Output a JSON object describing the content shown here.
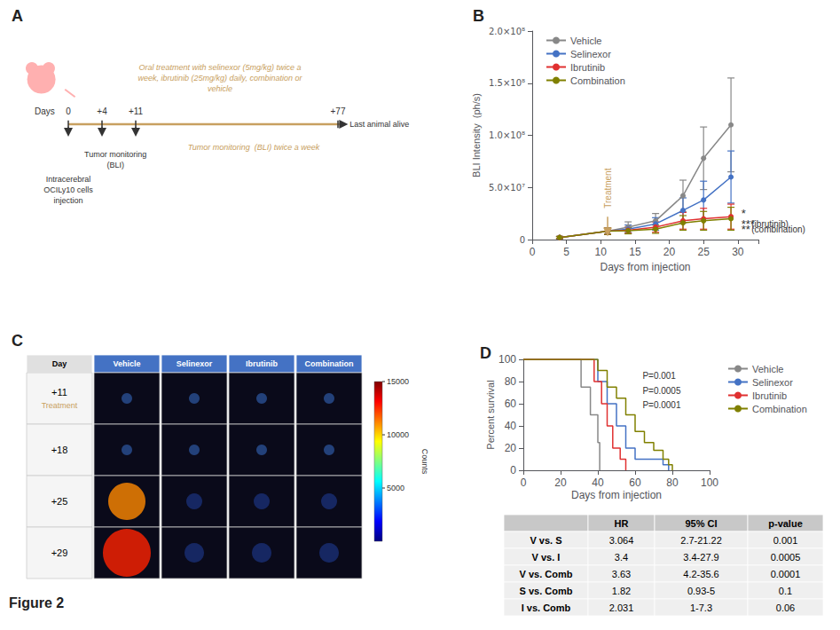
{
  "chart_data": [
    {
      "type": "timeline",
      "title": "A",
      "color": "#C8A060",
      "xlabel": "Days",
      "categories": [
        "0",
        "+4",
        "+11",
        "+77"
      ],
      "annotations": [
        {
          "text": "Intracerebral\nOCILy10 cells\ninjection"
        },
        {
          "text": "Tumor monitoring\n(BLI)"
        },
        {
          "text": "Last animal alive"
        },
        {
          "text": "Oral treatment with selinexor (5mg/kg) twice a\nweek, ibrutinib (25mg/kg) daily, combination or\nvehicle"
        },
        {
          "text": "Tumor monitoring  (BLI) twice a week"
        }
      ]
    },
    {
      "type": "line",
      "title": "B",
      "xlabel": "Days from injection",
      "ylabel": "BLI Intensity  (ph/s)",
      "x": [
        4,
        11,
        14,
        18,
        22,
        25,
        29
      ],
      "xlim": [
        0,
        33
      ],
      "xticks": [
        0,
        5,
        10,
        15,
        20,
        25,
        30
      ],
      "ylim": [
        0,
        200000000
      ],
      "yticks": [
        0,
        {
          "value": 50000000,
          "label": "5.0×10⁷"
        },
        {
          "value": 100000000,
          "label": "1.0×10⁸"
        },
        {
          "value": 150000000,
          "label": "1.5×10⁸"
        },
        {
          "value": 200000000,
          "label": "2.0×10⁸"
        }
      ],
      "grid": false,
      "legend": "upper left",
      "marker": "circle",
      "series": [
        {
          "name": "Vehicle",
          "color": "#888888",
          "values": [
            2000000,
            8000000,
            12000000,
            18000000,
            42000000,
            78000000,
            110000000
          ],
          "errors": [
            1000000,
            3000000,
            5000000,
            7000000,
            15000000,
            30000000,
            45000000
          ]
        },
        {
          "name": "Selinexor",
          "color": "#4472C4",
          "values": [
            2000000,
            8000000,
            10000000,
            15000000,
            28000000,
            38000000,
            60000000
          ],
          "errors": [
            1000000,
            3000000,
            4000000,
            6000000,
            12000000,
            18000000,
            25000000
          ]
        },
        {
          "name": "Ibrutinib",
          "color": "#E03030",
          "values": [
            2000000,
            8000000,
            9000000,
            12000000,
            18000000,
            20000000,
            22000000
          ],
          "errors": [
            1000000,
            3000000,
            3000000,
            5000000,
            8000000,
            10000000,
            12000000
          ]
        },
        {
          "name": "Combination",
          "color": "#808000",
          "values": [
            2000000,
            8000000,
            8500000,
            10000000,
            16000000,
            18000000,
            20000000
          ],
          "errors": [
            1000000,
            3000000,
            3000000,
            4000000,
            7000000,
            9000000,
            11000000
          ]
        }
      ],
      "annotations": [
        {
          "text": "Treatment",
          "x": 11,
          "y": 22000000,
          "arrow_to": [
            11,
            3000000
          ],
          "color": "#C8A060"
        },
        {
          "text": "*",
          "x": 30.5,
          "y": 25000000
        },
        {
          "text": "***",
          "x": 30.5,
          "y": 15000000
        },
        {
          "text": "**",
          "x": 30.5,
          "y": 10000000
        },
        {
          "text": "(ibrutinib)",
          "x": 32.0,
          "y": 15000000
        },
        {
          "text": "(combination)",
          "x": 32.0,
          "y": 10000000
        }
      ]
    },
    {
      "type": "image_grid",
      "title": "C",
      "color": "#4472C4",
      "categories": [
        "Day",
        "Vehicle",
        "Selinexor",
        "Ibrutinib",
        "Combination"
      ],
      "rows": [
        "+11\nTreatment",
        "+18",
        "+25",
        "+29"
      ],
      "colorbar": {
        "label": "Counts",
        "range": [
          0,
          15000
        ],
        "ticks": [
          5000,
          10000,
          15000
        ]
      },
      "annotations": [
        {
          "text": "Figure 2"
        }
      ]
    },
    {
      "type": "step",
      "title": "D",
      "xlabel": "Days from injection",
      "ylabel": "Percent survival",
      "xlim": [
        0,
        100
      ],
      "xticks": [
        0,
        20,
        40,
        60,
        80,
        100
      ],
      "ylim": [
        0,
        100
      ],
      "yticks": [
        0,
        20,
        40,
        60,
        80,
        100
      ],
      "grid": false,
      "legend": "upper right",
      "series": [
        {
          "name": "Vehicle",
          "color": "#888888",
          "x": [
            0,
            31,
            31,
            36,
            36,
            40,
            40,
            41,
            41
          ],
          "values": [
            100,
            100,
            75,
            75,
            50,
            50,
            25,
            25,
            0
          ]
        },
        {
          "name": "Selinexor",
          "color": "#4472C4",
          "x": [
            0,
            40,
            40,
            45,
            45,
            50,
            50,
            55,
            55,
            60,
            60,
            75,
            75,
            78,
            78
          ],
          "values": [
            100,
            100,
            80,
            80,
            60,
            60,
            40,
            40,
            20,
            20,
            10,
            10,
            5,
            5,
            0
          ]
        },
        {
          "name": "Ibrutinib",
          "color": "#E03030",
          "x": [
            0,
            38,
            38,
            42,
            42,
            45,
            45,
            48,
            48,
            52,
            52,
            55,
            55
          ],
          "values": [
            100,
            100,
            80,
            80,
            60,
            60,
            40,
            40,
            20,
            20,
            10,
            10,
            0
          ]
        },
        {
          "name": "Combination",
          "color": "#808000",
          "x": [
            0,
            40,
            40,
            45,
            45,
            50,
            50,
            55,
            55,
            60,
            60,
            65,
            65,
            70,
            70,
            75,
            75,
            78,
            78,
            80,
            80
          ],
          "values": [
            100,
            100,
            90,
            90,
            75,
            75,
            65,
            65,
            50,
            50,
            35,
            35,
            25,
            25,
            18,
            18,
            10,
            10,
            5,
            5,
            0
          ]
        }
      ],
      "annotations": [
        {
          "text": "P=0.001"
        },
        {
          "text": "P=0.0005"
        },
        {
          "text": "P=0.0001"
        }
      ]
    },
    {
      "type": "table",
      "columns": [
        null,
        "HR",
        "95% CI",
        "p-value"
      ],
      "rows": [
        [
          "V vs. S",
          "3.064",
          "2.7-21.22",
          "0.001"
        ],
        [
          "V vs. I",
          "3.4",
          "3.4-27.9",
          "0.0005"
        ],
        [
          "V vs. Comb",
          "3.63",
          "4.2-35.6",
          "0.0001"
        ],
        [
          "S vs. Comb",
          "1.82",
          "0.93-5",
          "0.1"
        ],
        [
          "I vs. Comb",
          "2.031",
          "1-7.3",
          "0.06"
        ]
      ]
    }
  ]
}
